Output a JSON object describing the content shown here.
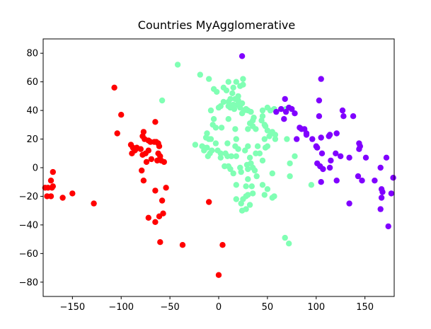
{
  "chart_data": {
    "type": "scatter",
    "title": "Countries MyAgglomerative",
    "xlabel": "",
    "ylabel": "",
    "xlim": [
      -180,
      180
    ],
    "ylim": [
      -90,
      90
    ],
    "xticks": [
      -150,
      -100,
      -50,
      0,
      50,
      100,
      150
    ],
    "yticks": [
      -80,
      -60,
      -40,
      -20,
      0,
      20,
      40,
      60,
      80
    ],
    "xtick_labels": [
      "−150",
      "−100",
      "−50",
      "0",
      "50",
      "100",
      "150"
    ],
    "ytick_labels": [
      "−80",
      "−60",
      "−40",
      "−20",
      "0",
      "20",
      "40",
      "60",
      "80"
    ],
    "grid": false,
    "series": [
      {
        "color": "#ff0000",
        "points": [
          [
            -107,
            56
          ],
          [
            -100,
            37
          ],
          [
            -104,
            24
          ],
          [
            -90,
            16
          ],
          [
            -88,
            14
          ],
          [
            -86,
            12
          ],
          [
            -89,
            10
          ],
          [
            -84,
            14
          ],
          [
            -85,
            13
          ],
          [
            -78,
            22
          ],
          [
            -76,
            20
          ],
          [
            -77,
            25
          ],
          [
            -72,
            19
          ],
          [
            -70,
            18
          ],
          [
            -66,
            18
          ],
          [
            -64,
            18
          ],
          [
            -62,
            17
          ],
          [
            -61,
            15
          ],
          [
            -62,
            10
          ],
          [
            -60,
            8
          ],
          [
            -63,
            5
          ],
          [
            -59,
            5
          ],
          [
            -56,
            4
          ],
          [
            -80,
            13
          ],
          [
            -78,
            9
          ],
          [
            -75,
            10
          ],
          [
            -72,
            12
          ],
          [
            -69,
            6
          ],
          [
            -74,
            4
          ],
          [
            -79,
            -2
          ],
          [
            -77,
            -9
          ],
          [
            -65,
            32
          ],
          [
            -65,
            -16
          ],
          [
            -58,
            -23
          ],
          [
            -57,
            -32
          ],
          [
            -61,
            -34
          ],
          [
            -72,
            -35
          ],
          [
            -65,
            -38
          ],
          [
            -60,
            -52
          ],
          [
            -54,
            -14
          ],
          [
            -37,
            -54
          ],
          [
            -10,
            -24
          ],
          [
            4,
            -54
          ],
          [
            0,
            -75
          ],
          [
            -128,
            -25
          ],
          [
            -150,
            -18
          ],
          [
            -160,
            -21
          ],
          [
            -170,
            -13
          ],
          [
            -172,
            -9
          ],
          [
            -170,
            -3
          ],
          [
            -175,
            -14
          ],
          [
            -178,
            -14
          ],
          [
            -176,
            -20
          ],
          [
            -172,
            -20
          ],
          [
            -171,
            -14
          ]
        ]
      },
      {
        "color": "#80ffb4",
        "points": [
          [
            -42,
            72
          ],
          [
            -19,
            65
          ],
          [
            -10,
            62
          ],
          [
            25,
            62
          ],
          [
            25,
            58
          ],
          [
            10,
            60
          ],
          [
            18,
            60
          ],
          [
            5,
            56
          ],
          [
            15,
            56
          ],
          [
            22,
            57
          ],
          [
            -5,
            55
          ],
          [
            -2,
            53
          ],
          [
            8,
            54
          ],
          [
            14,
            52
          ],
          [
            20,
            50
          ],
          [
            12,
            48
          ],
          [
            17,
            48
          ],
          [
            5,
            46
          ],
          [
            10,
            46
          ],
          [
            20,
            47
          ],
          [
            24,
            45
          ],
          [
            2,
            43
          ],
          [
            10,
            43
          ],
          [
            15,
            44
          ],
          [
            19,
            44
          ],
          [
            22,
            42
          ],
          [
            -8,
            40
          ],
          [
            0,
            42
          ],
          [
            12,
            42
          ],
          [
            16,
            41
          ],
          [
            28,
            41
          ],
          [
            24,
            38
          ],
          [
            30,
            40
          ],
          [
            26,
            40
          ],
          [
            33,
            39
          ],
          [
            36,
            35
          ],
          [
            45,
            40
          ],
          [
            50,
            42
          ],
          [
            53,
            40
          ],
          [
            57,
            41
          ],
          [
            69,
            41
          ],
          [
            45,
            36
          ],
          [
            35,
            33
          ],
          [
            32,
            31
          ],
          [
            44,
            33
          ],
          [
            48,
            29
          ],
          [
            54,
            24
          ],
          [
            52,
            22
          ],
          [
            55,
            25
          ],
          [
            58,
            23
          ],
          [
            50,
            26
          ],
          [
            47,
            30
          ],
          [
            38,
            27
          ],
          [
            35,
            29
          ],
          [
            -5,
            34
          ],
          [
            -3,
            28
          ],
          [
            3,
            28
          ],
          [
            10,
            34
          ],
          [
            17,
            27
          ],
          [
            30,
            27
          ],
          [
            -58,
            47
          ],
          [
            -6,
            30
          ],
          [
            -3,
            17
          ],
          [
            -12,
            14
          ],
          [
            -15,
            14
          ],
          [
            -11,
            8
          ],
          [
            -9,
            10
          ],
          [
            -7,
            12
          ],
          [
            -1,
            12
          ],
          [
            2,
            10
          ],
          [
            7,
            10
          ],
          [
            2,
            7
          ],
          [
            9,
            8
          ],
          [
            13,
            8
          ],
          [
            18,
            8
          ],
          [
            20,
            13
          ],
          [
            -8,
            20
          ],
          [
            -13,
            21
          ],
          [
            -12,
            24
          ],
          [
            -10,
            20
          ],
          [
            -17,
            15
          ],
          [
            -24,
            16
          ],
          [
            -15,
            12
          ],
          [
            9,
            17
          ],
          [
            17,
            15
          ],
          [
            18,
            20
          ],
          [
            27,
            12
          ],
          [
            30,
            15
          ],
          [
            32,
            7
          ],
          [
            38,
            10
          ],
          [
            40,
            15
          ],
          [
            42,
            10
          ],
          [
            45,
            5
          ],
          [
            47,
            20
          ],
          [
            50,
            15
          ],
          [
            48,
            14
          ],
          [
            58,
            20
          ],
          [
            70,
            20
          ],
          [
            73,
            3
          ],
          [
            78,
            8
          ],
          [
            10,
            1
          ],
          [
            6,
            1
          ],
          [
            12,
            -1
          ],
          [
            15,
            -4
          ],
          [
            23,
            -3
          ],
          [
            30,
            -1
          ],
          [
            22,
            0
          ],
          [
            35,
            0
          ],
          [
            29,
            2
          ],
          [
            37,
            -2
          ],
          [
            33,
            3
          ],
          [
            39,
            -6
          ],
          [
            30,
            -8
          ],
          [
            28,
            -13
          ],
          [
            34,
            -13
          ],
          [
            35,
            -18
          ],
          [
            28,
            -20
          ],
          [
            25,
            -22
          ],
          [
            18,
            -22
          ],
          [
            30,
            -19
          ],
          [
            32,
            -26
          ],
          [
            28,
            -29
          ],
          [
            24,
            -30
          ],
          [
            18,
            -12
          ],
          [
            23,
            -25
          ],
          [
            47,
            -19
          ],
          [
            57,
            -20
          ],
          [
            55,
            -21
          ],
          [
            50,
            -15
          ],
          [
            45,
            -12
          ],
          [
            55,
            -4
          ],
          [
            73,
            -6
          ],
          [
            95,
            -12
          ],
          [
            68,
            -49
          ],
          [
            72,
            -53
          ]
        ]
      },
      {
        "color": "#8000ff",
        "points": [
          [
            24,
            78
          ],
          [
            105,
            62
          ],
          [
            68,
            48
          ],
          [
            103,
            47
          ],
          [
            64,
            41
          ],
          [
            72,
            42
          ],
          [
            75,
            41
          ],
          [
            78,
            38
          ],
          [
            69,
            39
          ],
          [
            59,
            39
          ],
          [
            67,
            34
          ],
          [
            103,
            36
          ],
          [
            127,
            40
          ],
          [
            128,
            36
          ],
          [
            138,
            36
          ],
          [
            114,
            23
          ],
          [
            121,
            24
          ],
          [
            113,
            22
          ],
          [
            105,
            21
          ],
          [
            100,
            15
          ],
          [
            83,
            28
          ],
          [
            85,
            27
          ],
          [
            90,
            24
          ],
          [
            88,
            27
          ],
          [
            90,
            23
          ],
          [
            96,
            20
          ],
          [
            80,
            20
          ],
          [
            101,
            14
          ],
          [
            106,
            10
          ],
          [
            115,
            5
          ],
          [
            114,
            0
          ],
          [
            101,
            3
          ],
          [
            104,
            1
          ],
          [
            107,
            -1
          ],
          [
            105,
            -10
          ],
          [
            120,
            10
          ],
          [
            125,
            8
          ],
          [
            134,
            7
          ],
          [
            145,
            15
          ],
          [
            151,
            7
          ],
          [
            143,
            -6
          ],
          [
            121,
            -9
          ],
          [
            134,
            -25
          ],
          [
            147,
            -9
          ],
          [
            160,
            -9
          ],
          [
            166,
            0
          ],
          [
            172,
            7
          ],
          [
            167,
            -15
          ],
          [
            168,
            -17
          ],
          [
            177,
            -18
          ],
          [
            179,
            -7
          ],
          [
            167,
            -21
          ],
          [
            166,
            -29
          ],
          [
            174,
            -41
          ],
          [
            144,
            13
          ],
          [
            144,
            17
          ]
        ]
      }
    ]
  }
}
